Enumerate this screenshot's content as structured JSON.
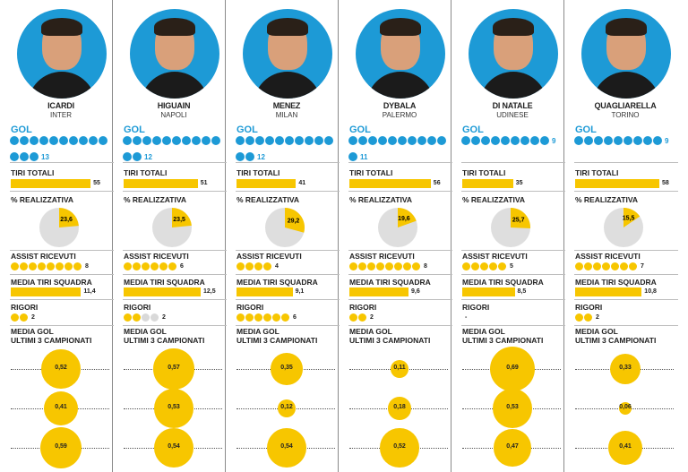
{
  "colors": {
    "blue": "#1d9ad6",
    "yellow": "#f7c600",
    "grey": "#dedede"
  },
  "labels": {
    "gol": "GOL",
    "tiri": "TIRI TOTALI",
    "realizzativa": "% REALIZZATIVA",
    "assist": "ASSIST RICEVUTI",
    "media_tiri": "MEDIA TIRI SQUADRA",
    "rigori": "RIGORI",
    "media_gol_1": "MEDIA GOL",
    "media_gol_2": "ULTIMI 3 CAMPIONATI"
  },
  "players": [
    {
      "name": "ICARDI",
      "club": "INTER",
      "gol": 13,
      "tiri": 55,
      "realizzativa": "23,6",
      "pct": 23.6,
      "assist": 8,
      "assist_empty": 0,
      "media_tiri": "11,4",
      "media_tiri_num": 11.4,
      "rigori": "2",
      "rigori_dots": 2,
      "rigori_empty": 0,
      "medie": [
        "0,52",
        "0,41",
        "0,59"
      ],
      "medie_num": [
        0.52,
        0.41,
        0.59
      ]
    },
    {
      "name": "HIGUAIN",
      "club": "NAPOLI",
      "gol": 12,
      "tiri": 51,
      "realizzativa": "23,5",
      "pct": 23.5,
      "assist": 6,
      "assist_empty": 0,
      "media_tiri": "12,5",
      "media_tiri_num": 12.5,
      "rigori": "2",
      "rigori_dots": 2,
      "rigori_empty": 2,
      "medie": [
        "0,57",
        "0,53",
        "0,54"
      ],
      "medie_num": [
        0.57,
        0.53,
        0.54
      ]
    },
    {
      "name": "MENEZ",
      "club": "MILAN",
      "gol": 12,
      "tiri": 41,
      "realizzativa": "29,2",
      "pct": 29.2,
      "assist": 4,
      "assist_empty": 0,
      "media_tiri": "9,1",
      "media_tiri_num": 9.1,
      "rigori": "6",
      "rigori_dots": 6,
      "rigori_empty": 0,
      "medie": [
        "0,35",
        "0,12",
        "0,54"
      ],
      "medie_num": [
        0.35,
        0.12,
        0.54
      ]
    },
    {
      "name": "DYBALA",
      "club": "PALERMO",
      "gol": 11,
      "tiri": 56,
      "realizzativa": "19,6",
      "pct": 19.6,
      "assist": 8,
      "assist_empty": 0,
      "media_tiri": "9,6",
      "media_tiri_num": 9.6,
      "rigori": "2",
      "rigori_dots": 2,
      "rigori_empty": 0,
      "medie": [
        "0,11",
        "0,18",
        "0,52"
      ],
      "medie_num": [
        0.11,
        0.18,
        0.52
      ]
    },
    {
      "name": "DI NATALE",
      "club": "UDINESE",
      "gol": 9,
      "tiri": 35,
      "realizzativa": "25,7",
      "pct": 25.7,
      "assist": 5,
      "assist_empty": 0,
      "media_tiri": "8,5",
      "media_tiri_num": 8.5,
      "rigori": "-",
      "rigori_dots": 0,
      "rigori_empty": 0,
      "medie": [
        "0,69",
        "0,53",
        "0,47"
      ],
      "medie_num": [
        0.69,
        0.53,
        0.47
      ]
    },
    {
      "name": "QUAGLIARELLA",
      "club": "TORINO",
      "gol": 9,
      "tiri": 58,
      "realizzativa": "15,5",
      "pct": 15.5,
      "assist": 7,
      "assist_empty": 0,
      "media_tiri": "10,8",
      "media_tiri_num": 10.8,
      "rigori": "2",
      "rigori_dots": 2,
      "rigori_empty": 0,
      "medie": [
        "0,33",
        "0,06",
        "0,41"
      ],
      "medie_num": [
        0.33,
        0.06,
        0.41
      ]
    }
  ]
}
